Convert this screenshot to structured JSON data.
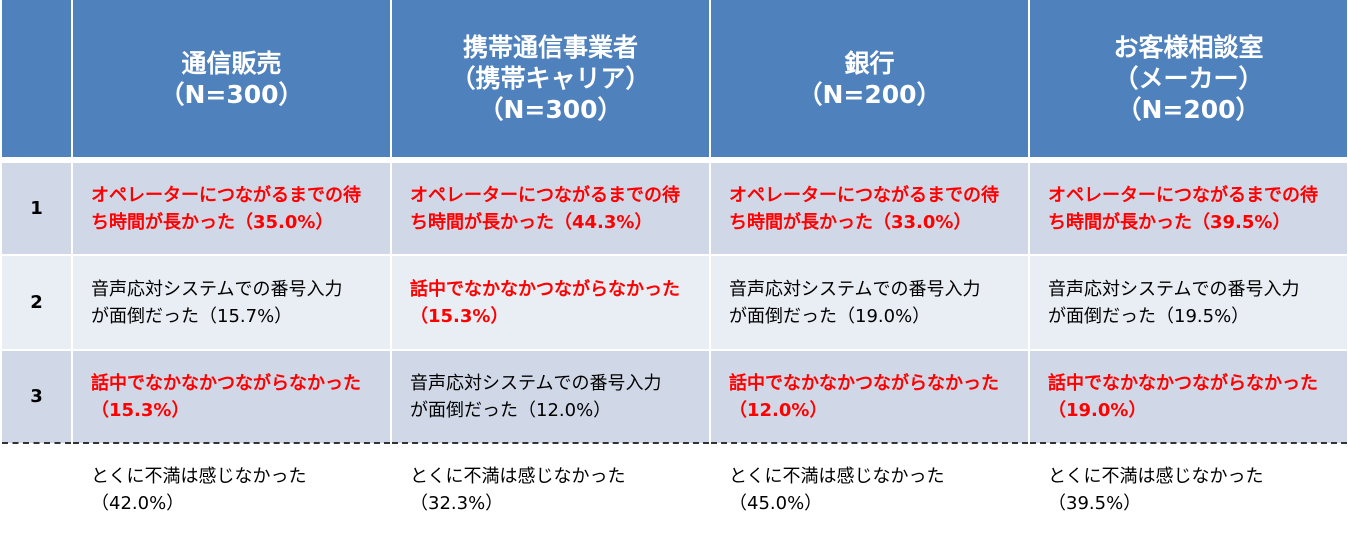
{
  "columns": [
    {
      "line1": "通信販売",
      "line2": "（N=300）",
      "line3": ""
    },
    {
      "line1": "携帯通信事業者",
      "line2": "（携帯キャリア）",
      "line3": "（N=300）"
    },
    {
      "line1": "銀行",
      "line2": "（N=200）",
      "line3": ""
    },
    {
      "line1": "お客様相談室",
      "line2": "（メーカー）",
      "line3": "（N=200）"
    }
  ],
  "rows": [
    {
      "rank": "1",
      "cells": [
        {
          "line1": "オペレーターにつながるまでの待",
          "line2": "ち時間が長かった（35.0%）",
          "highlight": true
        },
        {
          "line1": "オペレーターにつながるまでの待",
          "line2": "ち時間が長かった（44.3%）",
          "highlight": true
        },
        {
          "line1": "オペレーターにつながるまでの待",
          "line2": "ち時間が長かった（33.0%）",
          "highlight": true
        },
        {
          "line1": "オペレーターにつながるまでの待",
          "line2": "ち時間が長かった（39.5%）",
          "highlight": true
        }
      ]
    },
    {
      "rank": "2",
      "cells": [
        {
          "line1": "音声応対システムでの番号入力",
          "line2": "が面倒だった（15.7%）",
          "highlight": false
        },
        {
          "line1": "話中でなかなかつながらなかった",
          "line2": "（15.3%）",
          "highlight": true
        },
        {
          "line1": "音声応対システムでの番号入力",
          "line2": "が面倒だった（19.0%）",
          "highlight": false
        },
        {
          "line1": "音声応対システムでの番号入力",
          "line2": "が面倒だった（19.5%）",
          "highlight": false
        }
      ]
    },
    {
      "rank": "3",
      "cells": [
        {
          "line1": "話中でなかなかつながらなかった",
          "line2": "（15.3%）",
          "highlight": true
        },
        {
          "line1": "音声応対システムでの番号入力",
          "line2": "が面倒だった（12.0%）",
          "highlight": false
        },
        {
          "line1": "話中でなかなかつながらなかった",
          "line2": "（12.0%）",
          "highlight": true
        },
        {
          "line1": "話中でなかなかつながらなかった",
          "line2": "（19.0%）",
          "highlight": true
        }
      ]
    },
    {
      "rank": "",
      "cells": [
        {
          "line1": "とくに不満は感じなかった",
          "line2": "（42.0%）",
          "highlight": false
        },
        {
          "line1": "とくに不満は感じなかった",
          "line2": "（32.3%）",
          "highlight": false
        },
        {
          "line1": "とくに不満は感じなかった",
          "line2": "（45.0%）",
          "highlight": false
        },
        {
          "line1": "とくに不満は感じなかった",
          "line2": "（39.5%）",
          "highlight": false
        }
      ]
    }
  ],
  "colors": {
    "header_bg": "#4f81bd",
    "row_dark": "#d0d8e8",
    "row_light": "#e9edf4",
    "highlight_text": "#ff0000"
  }
}
